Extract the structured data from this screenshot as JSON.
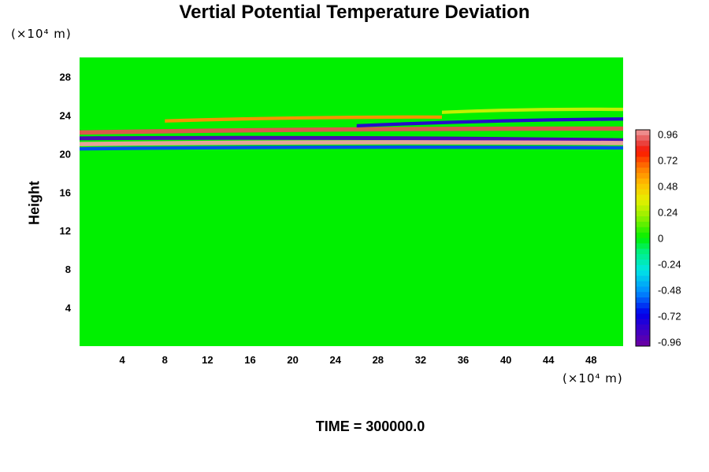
{
  "chart_data": {
    "type": "heatmap",
    "title": "Vertial Potential Temperature Deviation",
    "xlabel": "",
    "ylabel": "Height",
    "x_unit": "(×10⁴ m)",
    "y_unit": "(×10⁴ m)",
    "xlim": [
      0,
      51
    ],
    "ylim": [
      0,
      30
    ],
    "x_ticks": [
      4,
      8,
      12,
      16,
      20,
      24,
      28,
      32,
      36,
      40,
      44,
      48
    ],
    "y_ticks": [
      4,
      8,
      12,
      16,
      20,
      24,
      28
    ],
    "colorbar": {
      "range": [
        -1.0,
        1.0
      ],
      "tick_values": [
        0.96,
        0.72,
        0.48,
        0.24,
        0,
        -0.24,
        -0.48,
        -0.72,
        -0.96
      ],
      "tick_labels": [
        "0.96",
        "0.72",
        "0.48",
        "0.24",
        "0",
        "-0.24",
        "-0.48",
        "-0.72",
        "-0.96"
      ]
    },
    "background_value": 0,
    "field_bands": [
      {
        "x": [
          0,
          51
        ],
        "y_center_start": 22.2,
        "y_center_end": 22.6,
        "thickness": 0.45,
        "value": 0.9
      },
      {
        "x": [
          0,
          51
        ],
        "y_center_start": 21.6,
        "y_center_end": 21.4,
        "thickness": 0.4,
        "value": -0.9
      },
      {
        "x": [
          0,
          51
        ],
        "y_center_start": 21.0,
        "y_center_end": 21.1,
        "thickness": 0.45,
        "value": 1.0
      },
      {
        "x": [
          0,
          51
        ],
        "y_center_start": 20.5,
        "y_center_end": 20.6,
        "thickness": 0.35,
        "value": -0.6
      },
      {
        "x": [
          8,
          34
        ],
        "y_center_start": 23.4,
        "y_center_end": 23.8,
        "thickness": 0.35,
        "value": 0.6
      },
      {
        "x": [
          26,
          51
        ],
        "y_center_start": 22.9,
        "y_center_end": 23.6,
        "thickness": 0.35,
        "value": -0.8
      },
      {
        "x": [
          34,
          51
        ],
        "y_center_start": 24.3,
        "y_center_end": 24.6,
        "thickness": 0.35,
        "value": 0.3
      }
    ]
  },
  "footer": {
    "time_label": "TIME = 300000.0"
  }
}
